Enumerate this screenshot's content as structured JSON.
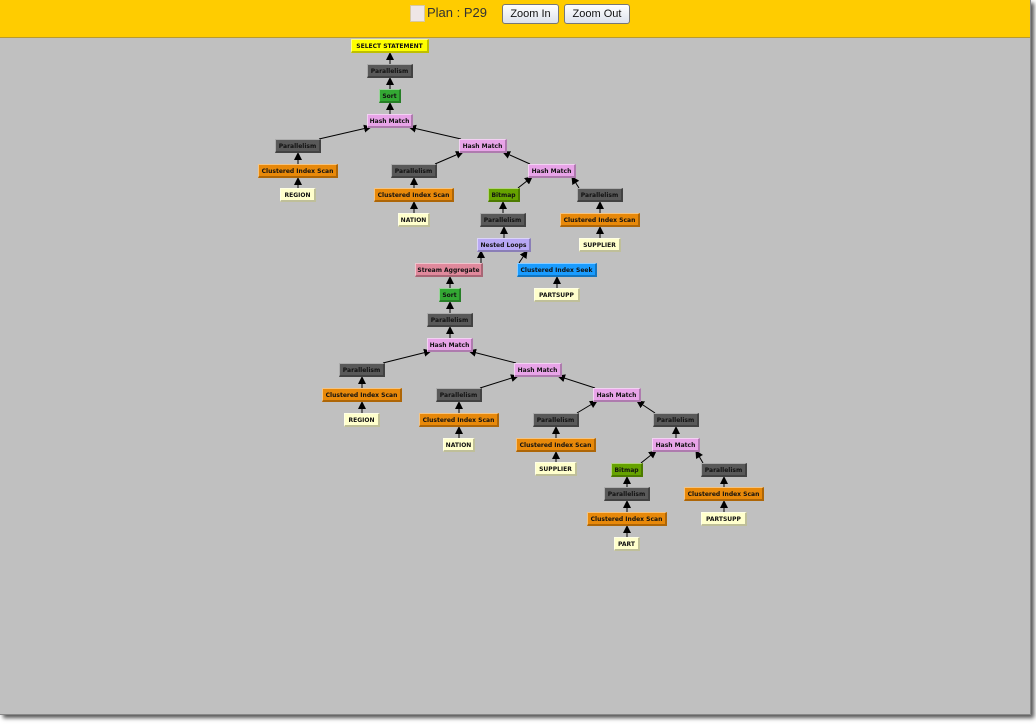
{
  "header": {
    "plan_label": "Plan : P29",
    "zoom_in": "Zoom In",
    "zoom_out": "Zoom Out"
  },
  "node_colors": {
    "select": "#ffff00",
    "parallelism": "#595959",
    "sort": "#33a833",
    "hash": "#e8a4e8",
    "scan": "#e8890a",
    "table": "#ffffcc",
    "bitmap": "#66a300",
    "loops": "#b8a8f4",
    "aggregate": "#e0899c",
    "seek": "#1a9cff"
  },
  "plan_nodes": [
    {
      "label": "SELECT STATEMENT",
      "type": "select"
    },
    {
      "label": "Parallelism",
      "type": "parallelism"
    },
    {
      "label": "Sort",
      "type": "sort"
    },
    {
      "label": "Hash Match",
      "type": "hash"
    },
    {
      "label": "Parallelism",
      "type": "parallelism"
    },
    {
      "label": "Clustered Index Scan",
      "type": "scan"
    },
    {
      "label": "REGION",
      "type": "table"
    },
    {
      "label": "Hash Match",
      "type": "hash"
    },
    {
      "label": "Parallelism",
      "type": "parallelism"
    },
    {
      "label": "Clustered Index Scan",
      "type": "scan"
    },
    {
      "label": "NATION",
      "type": "table"
    },
    {
      "label": "Hash Match",
      "type": "hash"
    },
    {
      "label": "Bitmap",
      "type": "bitmap"
    },
    {
      "label": "Parallelism",
      "type": "parallelism"
    },
    {
      "label": "Clustered Index Scan",
      "type": "scan"
    },
    {
      "label": "SUPPLIER",
      "type": "table"
    },
    {
      "label": "Parallelism",
      "type": "parallelism"
    },
    {
      "label": "Nested Loops",
      "type": "loops"
    },
    {
      "label": "Stream Aggregate",
      "type": "aggregate"
    },
    {
      "label": "Clustered Index Seek",
      "type": "seek"
    },
    {
      "label": "PARTSUPP",
      "type": "table"
    },
    {
      "label": "Sort",
      "type": "sort"
    },
    {
      "label": "Parallelism",
      "type": "parallelism"
    },
    {
      "label": "Hash Match",
      "type": "hash"
    },
    {
      "label": "Parallelism",
      "type": "parallelism"
    },
    {
      "label": "Clustered Index Scan",
      "type": "scan"
    },
    {
      "label": "REGION",
      "type": "table"
    },
    {
      "label": "Hash Match",
      "type": "hash"
    },
    {
      "label": "Parallelism",
      "type": "parallelism"
    },
    {
      "label": "Clustered Index Scan",
      "type": "scan"
    },
    {
      "label": "NATION",
      "type": "table"
    },
    {
      "label": "Hash Match",
      "type": "hash"
    },
    {
      "label": "Parallelism",
      "type": "parallelism"
    },
    {
      "label": "Clustered Index Scan",
      "type": "scan"
    },
    {
      "label": "SUPPLIER",
      "type": "table"
    },
    {
      "label": "Parallelism",
      "type": "parallelism"
    },
    {
      "label": "Hash Match",
      "type": "hash"
    },
    {
      "label": "Bitmap",
      "type": "bitmap"
    },
    {
      "label": "Parallelism",
      "type": "parallelism"
    },
    {
      "label": "Clustered Index Scan",
      "type": "scan"
    },
    {
      "label": "PART",
      "type": "table"
    },
    {
      "label": "Parallelism",
      "type": "parallelism"
    },
    {
      "label": "Clustered Index Scan",
      "type": "scan"
    },
    {
      "label": "PARTSUPP",
      "type": "table"
    }
  ]
}
